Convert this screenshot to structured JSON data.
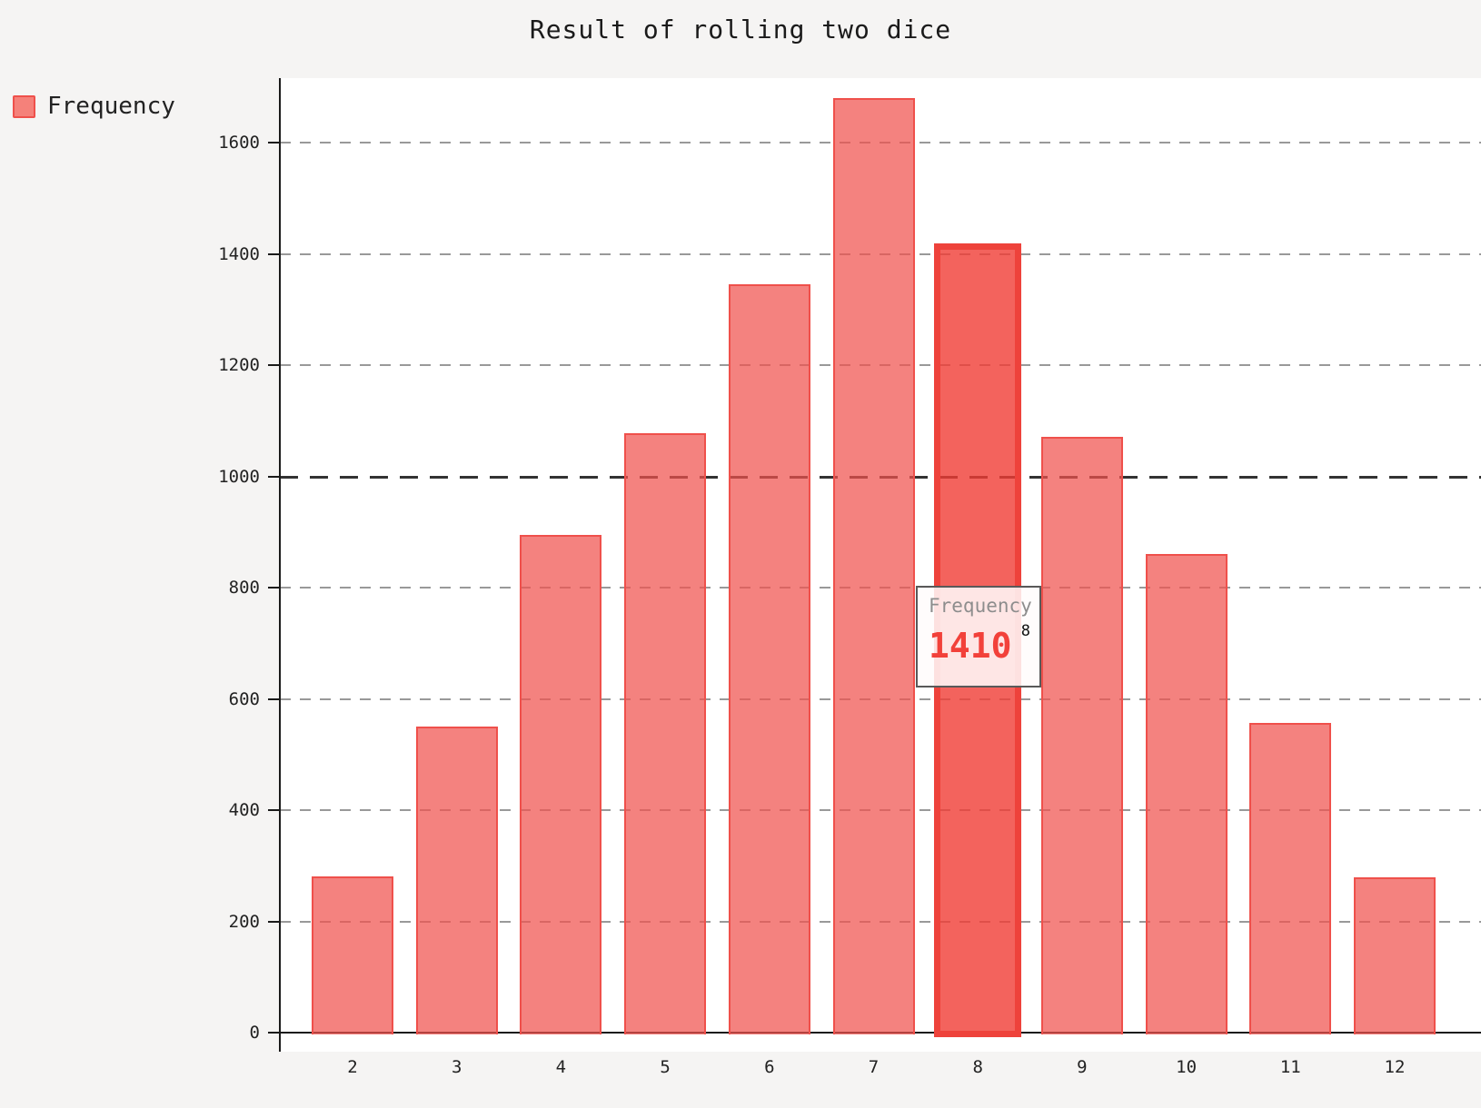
{
  "title": "Result of rolling two dice",
  "legend": {
    "label": "Frequency"
  },
  "tooltip": {
    "label": "Frequency",
    "value": "1410",
    "category": "8"
  },
  "colors": {
    "page_background": "#f5f4f3",
    "plot_background": "#ffffff",
    "bar_fill": "rgba(240,82,77,0.72)",
    "bar_fill_solid": "#f5817a",
    "bar_border": "#ef504b",
    "bar_highlight_fill": "rgba(240,60,52,0.8)",
    "bar_highlight_border": "#ee423b",
    "grid": "#999999",
    "grid_emphasis": "#333333",
    "axis": "#1a1a1a",
    "tooltip_value": "#f2413a"
  },
  "chart_data": {
    "type": "bar",
    "title": "Result of rolling two dice",
    "series_name": "Frequency",
    "categories": [
      2,
      3,
      4,
      5,
      6,
      7,
      8,
      9,
      10,
      11,
      12
    ],
    "values": [
      281,
      551,
      895,
      1078,
      1346,
      1680,
      1410,
      1072,
      861,
      557,
      279
    ],
    "highlighted": {
      "category": 8,
      "value": 1410
    },
    "xlabel": "",
    "ylabel": "",
    "ylim": [
      0,
      1715
    ],
    "yticks": [
      0,
      200,
      400,
      600,
      800,
      1000,
      1200,
      1400,
      1600
    ],
    "emphasized_gridline": 1000,
    "grid": "horizontal-dashed",
    "legend_position": "top-left"
  }
}
